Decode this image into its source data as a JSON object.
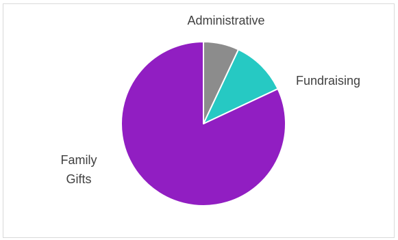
{
  "chart_data": {
    "type": "pie",
    "start_angle_deg": 0,
    "direction": "clockwise",
    "slices": [
      {
        "label": "Administrative",
        "label_lines": [
          "Administrative"
        ],
        "value": 7,
        "color": "#8c8c8c"
      },
      {
        "label": "Fundraising",
        "label_lines": [
          "Fundraising"
        ],
        "value": 11,
        "color": "#26c9c3"
      },
      {
        "label": "Family Gifts",
        "label_lines": [
          "Family",
          "Gifts"
        ],
        "value": 82,
        "color": "#911ec2"
      }
    ],
    "legend": "none",
    "slice_border_color": "#ffffff"
  }
}
